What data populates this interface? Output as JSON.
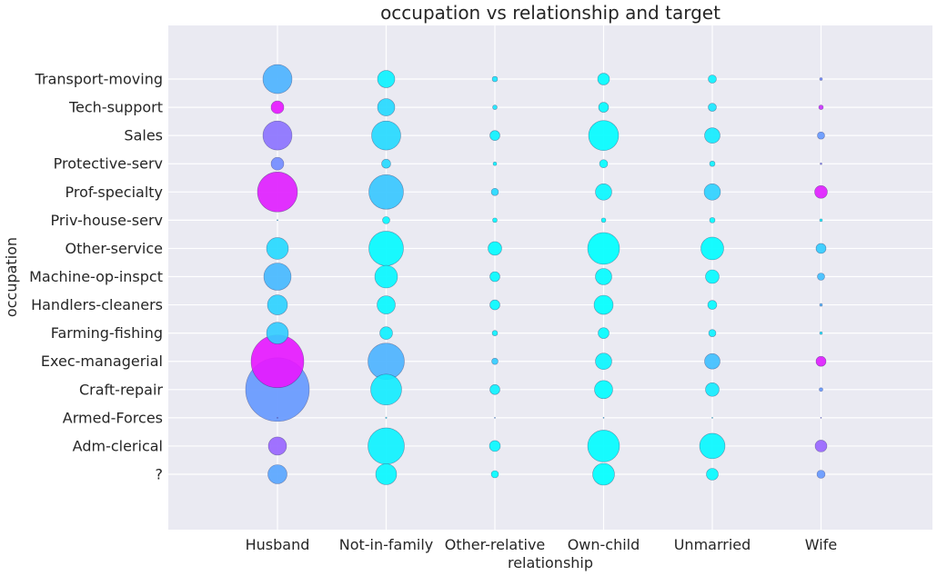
{
  "chart_data": {
    "type": "scatter",
    "title": "occupation vs relationship and target",
    "xlabel": "relationship",
    "ylabel": "occupation",
    "x_categories": [
      "Husband",
      "Not-in-family",
      "Other-relative",
      "Own-child",
      "Unmarried",
      "Wife"
    ],
    "y_categories": [
      "?",
      "Adm-clerical",
      "Armed-Forces",
      "Craft-repair",
      "Exec-managerial",
      "Farming-fishing",
      "Handlers-cleaners",
      "Machine-op-inspct",
      "Other-service",
      "Priv-house-serv",
      "Prof-specialty",
      "Protective-serv",
      "Sales",
      "Tech-support",
      "Transport-moving"
    ],
    "grid": true,
    "background": "#eaeaf2",
    "colormap": "cool",
    "size_label": "count",
    "color_label": "target",
    "points": [
      {
        "x": "Husband",
        "y": "Transport-moving",
        "size": 32,
        "target": 0.3
      },
      {
        "x": "Husband",
        "y": "Tech-support",
        "size": 14,
        "target": 0.9
      },
      {
        "x": "Husband",
        "y": "Sales",
        "size": 32,
        "target": 0.55
      },
      {
        "x": "Husband",
        "y": "Protective-serv",
        "size": 14,
        "target": 0.45
      },
      {
        "x": "Husband",
        "y": "Prof-specialty",
        "size": 44,
        "target": 0.88
      },
      {
        "x": "Husband",
        "y": "Priv-house-serv",
        "size": 1,
        "target": 0.2
      },
      {
        "x": "Husband",
        "y": "Other-service",
        "size": 24,
        "target": 0.15
      },
      {
        "x": "Husband",
        "y": "Machine-op-inspct",
        "size": 30,
        "target": 0.28
      },
      {
        "x": "Husband",
        "y": "Handlers-cleaners",
        "size": 22,
        "target": 0.18
      },
      {
        "x": "Husband",
        "y": "Farming-fishing",
        "size": 24,
        "target": 0.2
      },
      {
        "x": "Husband",
        "y": "Exec-managerial",
        "size": 58,
        "target": 0.9
      },
      {
        "x": "Husband",
        "y": "Craft-repair",
        "size": 70,
        "target": 0.4
      },
      {
        "x": "Husband",
        "y": "Armed-Forces",
        "size": 0.8,
        "target": 0.5
      },
      {
        "x": "Husband",
        "y": "Adm-clerical",
        "size": 20,
        "target": 0.6
      },
      {
        "x": "Husband",
        "y": "?",
        "size": 21,
        "target": 0.35
      },
      {
        "x": "Not-in-family",
        "y": "Transport-moving",
        "size": 19,
        "target": 0.05
      },
      {
        "x": "Not-in-family",
        "y": "Tech-support",
        "size": 19,
        "target": 0.15
      },
      {
        "x": "Not-in-family",
        "y": "Sales",
        "size": 32,
        "target": 0.15
      },
      {
        "x": "Not-in-family",
        "y": "Protective-serv",
        "size": 10,
        "target": 0.15
      },
      {
        "x": "Not-in-family",
        "y": "Prof-specialty",
        "size": 38,
        "target": 0.22
      },
      {
        "x": "Not-in-family",
        "y": "Priv-house-serv",
        "size": 8,
        "target": 0.03
      },
      {
        "x": "Not-in-family",
        "y": "Other-service",
        "size": 38,
        "target": 0.02
      },
      {
        "x": "Not-in-family",
        "y": "Machine-op-inspct",
        "size": 25,
        "target": 0.03
      },
      {
        "x": "Not-in-family",
        "y": "Handlers-cleaners",
        "size": 20,
        "target": 0.03
      },
      {
        "x": "Not-in-family",
        "y": "Farming-fishing",
        "size": 14,
        "target": 0.06
      },
      {
        "x": "Not-in-family",
        "y": "Exec-managerial",
        "size": 40,
        "target": 0.3
      },
      {
        "x": "Not-in-family",
        "y": "Craft-repair",
        "size": 34,
        "target": 0.08
      },
      {
        "x": "Not-in-family",
        "y": "Armed-Forces",
        "size": 1.5,
        "target": 0.1
      },
      {
        "x": "Not-in-family",
        "y": "Adm-clerical",
        "size": 40,
        "target": 0.05
      },
      {
        "x": "Not-in-family",
        "y": "?",
        "size": 23,
        "target": 0.03
      },
      {
        "x": "Other-relative",
        "y": "Transport-moving",
        "size": 6,
        "target": 0.1
      },
      {
        "x": "Other-relative",
        "y": "Tech-support",
        "size": 5,
        "target": 0.1
      },
      {
        "x": "Other-relative",
        "y": "Sales",
        "size": 11,
        "target": 0.05
      },
      {
        "x": "Other-relative",
        "y": "Protective-serv",
        "size": 4,
        "target": 0.05
      },
      {
        "x": "Other-relative",
        "y": "Prof-specialty",
        "size": 8,
        "target": 0.15
      },
      {
        "x": "Other-relative",
        "y": "Priv-house-serv",
        "size": 5,
        "target": 0.02
      },
      {
        "x": "Other-relative",
        "y": "Other-service",
        "size": 15,
        "target": 0.01
      },
      {
        "x": "Other-relative",
        "y": "Machine-op-inspct",
        "size": 11,
        "target": 0.02
      },
      {
        "x": "Other-relative",
        "y": "Handlers-cleaners",
        "size": 11,
        "target": 0.02
      },
      {
        "x": "Other-relative",
        "y": "Farming-fishing",
        "size": 6,
        "target": 0.05
      },
      {
        "x": "Other-relative",
        "y": "Exec-managerial",
        "size": 7,
        "target": 0.2
      },
      {
        "x": "Other-relative",
        "y": "Craft-repair",
        "size": 11,
        "target": 0.05
      },
      {
        "x": "Other-relative",
        "y": "Armed-Forces",
        "size": 1,
        "target": 0.3
      },
      {
        "x": "Other-relative",
        "y": "Adm-clerical",
        "size": 12,
        "target": 0.03
      },
      {
        "x": "Other-relative",
        "y": "?",
        "size": 8,
        "target": 0.01
      },
      {
        "x": "Own-child",
        "y": "Transport-moving",
        "size": 13,
        "target": 0.01
      },
      {
        "x": "Own-child",
        "y": "Tech-support",
        "size": 11,
        "target": 0.02
      },
      {
        "x": "Own-child",
        "y": "Sales",
        "size": 33,
        "target": 0.01
      },
      {
        "x": "Own-child",
        "y": "Protective-serv",
        "size": 9,
        "target": 0.01
      },
      {
        "x": "Own-child",
        "y": "Prof-specialty",
        "size": 18,
        "target": 0.03
      },
      {
        "x": "Own-child",
        "y": "Priv-house-serv",
        "size": 5,
        "target": 0.01
      },
      {
        "x": "Own-child",
        "y": "Other-service",
        "size": 35,
        "target": 0.0
      },
      {
        "x": "Own-child",
        "y": "Machine-op-inspct",
        "size": 18,
        "target": 0.01
      },
      {
        "x": "Own-child",
        "y": "Handlers-cleaners",
        "size": 21,
        "target": 0.0
      },
      {
        "x": "Own-child",
        "y": "Farming-fishing",
        "size": 12,
        "target": 0.01
      },
      {
        "x": "Own-child",
        "y": "Exec-managerial",
        "size": 18,
        "target": 0.04
      },
      {
        "x": "Own-child",
        "y": "Craft-repair",
        "size": 20,
        "target": 0.01
      },
      {
        "x": "Own-child",
        "y": "Armed-Forces",
        "size": 1,
        "target": 0.2
      },
      {
        "x": "Own-child",
        "y": "Adm-clerical",
        "size": 35,
        "target": 0.01
      },
      {
        "x": "Own-child",
        "y": "?",
        "size": 24,
        "target": 0.0
      },
      {
        "x": "Unmarried",
        "y": "Transport-moving",
        "size": 9,
        "target": 0.05
      },
      {
        "x": "Unmarried",
        "y": "Tech-support",
        "size": 9,
        "target": 0.1
      },
      {
        "x": "Unmarried",
        "y": "Sales",
        "size": 17,
        "target": 0.08
      },
      {
        "x": "Unmarried",
        "y": "Protective-serv",
        "size": 6,
        "target": 0.05
      },
      {
        "x": "Unmarried",
        "y": "Prof-specialty",
        "size": 18,
        "target": 0.18
      },
      {
        "x": "Unmarried",
        "y": "Priv-house-serv",
        "size": 6,
        "target": 0.02
      },
      {
        "x": "Unmarried",
        "y": "Other-service",
        "size": 25,
        "target": 0.01
      },
      {
        "x": "Unmarried",
        "y": "Machine-op-inspct",
        "size": 15,
        "target": 0.02
      },
      {
        "x": "Unmarried",
        "y": "Handlers-cleaners",
        "size": 10,
        "target": 0.02
      },
      {
        "x": "Unmarried",
        "y": "Farming-fishing",
        "size": 8,
        "target": 0.05
      },
      {
        "x": "Unmarried",
        "y": "Exec-managerial",
        "size": 17,
        "target": 0.25
      },
      {
        "x": "Unmarried",
        "y": "Craft-repair",
        "size": 15,
        "target": 0.08
      },
      {
        "x": "Unmarried",
        "y": "Armed-Forces",
        "size": 0.5,
        "target": 0.1
      },
      {
        "x": "Unmarried",
        "y": "Adm-clerical",
        "size": 28,
        "target": 0.03
      },
      {
        "x": "Unmarried",
        "y": "?",
        "size": 13,
        "target": 0.02
      },
      {
        "x": "Wife",
        "y": "Transport-moving",
        "size": 3,
        "target": 0.45
      },
      {
        "x": "Wife",
        "y": "Tech-support",
        "size": 5,
        "target": 0.8
      },
      {
        "x": "Wife",
        "y": "Sales",
        "size": 8,
        "target": 0.4
      },
      {
        "x": "Wife",
        "y": "Protective-serv",
        "size": 2,
        "target": 0.5
      },
      {
        "x": "Wife",
        "y": "Prof-specialty",
        "size": 14,
        "target": 0.88
      },
      {
        "x": "Wife",
        "y": "Priv-house-serv",
        "size": 3,
        "target": 0.05
      },
      {
        "x": "Wife",
        "y": "Other-service",
        "size": 11,
        "target": 0.2
      },
      {
        "x": "Wife",
        "y": "Machine-op-inspct",
        "size": 8,
        "target": 0.25
      },
      {
        "x": "Wife",
        "y": "Handlers-cleaners",
        "size": 3,
        "target": 0.3
      },
      {
        "x": "Wife",
        "y": "Farming-fishing",
        "size": 3,
        "target": 0.1
      },
      {
        "x": "Wife",
        "y": "Exec-managerial",
        "size": 11,
        "target": 0.88
      },
      {
        "x": "Wife",
        "y": "Craft-repair",
        "size": 4,
        "target": 0.4
      },
      {
        "x": "Wife",
        "y": "Armed-Forces",
        "size": 0.3,
        "target": 0.5
      },
      {
        "x": "Wife",
        "y": "Adm-clerical",
        "size": 13,
        "target": 0.6
      },
      {
        "x": "Wife",
        "y": "?",
        "size": 9,
        "target": 0.4
      }
    ]
  }
}
